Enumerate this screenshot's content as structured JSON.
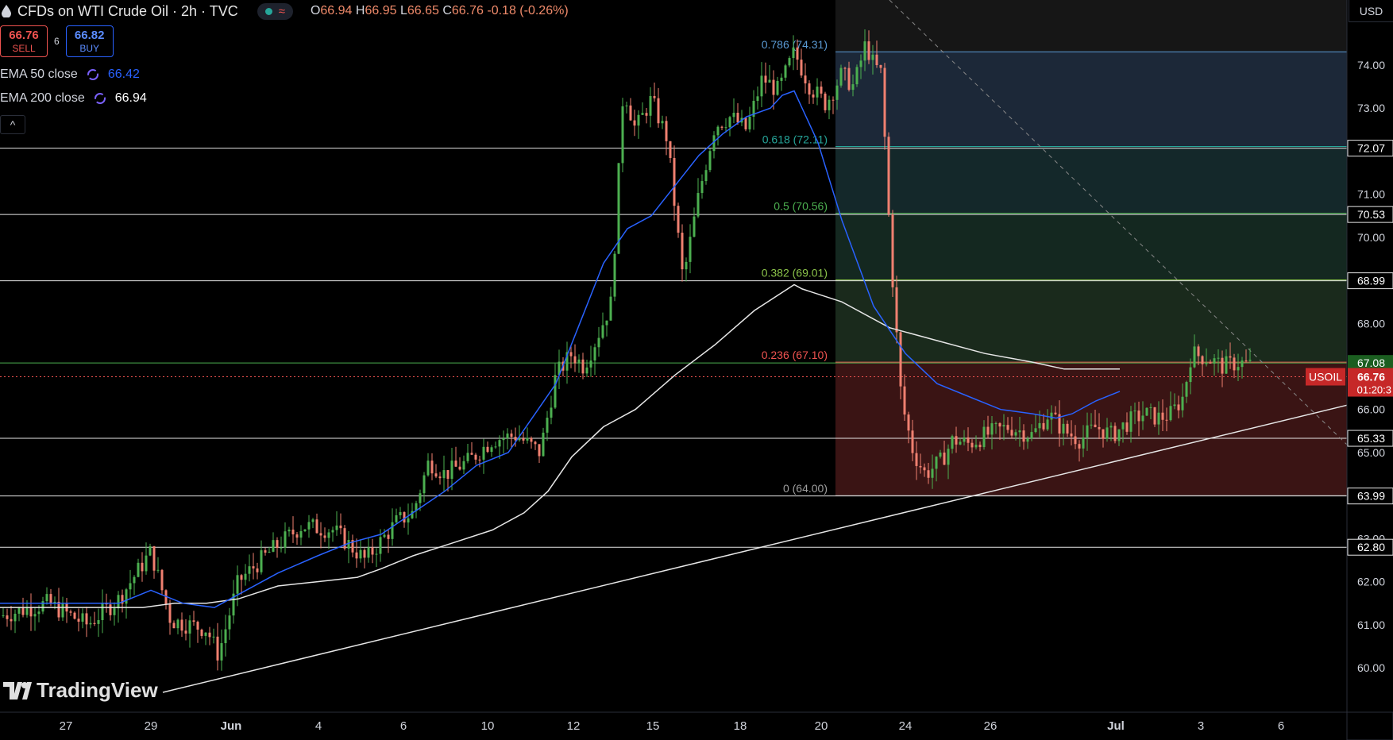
{
  "header": {
    "title": "CFDs on WTI Crude Oil · 2h · TVC",
    "market_status_icon": "green-dot",
    "indicator_icon": "wave-icon",
    "ohlc": [
      {
        "k": "O",
        "v": "66.94"
      },
      {
        "k": "H",
        "v": "66.95"
      },
      {
        "k": "L",
        "v": "66.65"
      },
      {
        "k": "C",
        "v": "66.76"
      },
      {
        "k": "",
        "v": "-0.18 (-0.26%)"
      }
    ]
  },
  "trade": {
    "sell_price": "66.76",
    "sell_label": "SELL",
    "spread": "6",
    "buy_price": "66.82",
    "buy_label": "BUY"
  },
  "indicators": [
    {
      "label": "EMA 50 close",
      "value": "66.42",
      "color": "#2962ff"
    },
    {
      "label": "EMA 200 close",
      "value": "66.94",
      "color": "#e6e6e6"
    }
  ],
  "collapse_label": "^",
  "currency": "USD",
  "logo_text": "TradingView",
  "colors": {
    "up": "#26a69a",
    "down": "#ef5350",
    "candle_up": "#4caf50",
    "candle_down": "#f08070",
    "ema50": "#2962ff",
    "ema200": "#e6e6e6",
    "fib_zone_top": "#1c2838",
    "fib_zone_mid": "#142820",
    "fib_zone_bottom": "#3a1414"
  },
  "chart_data": {
    "type": "candlestick",
    "symbol": "USOIL",
    "last_price": "66.76",
    "countdown": "01:20:3",
    "y_axis": {
      "range": [
        59.4,
        75.8
      ],
      "ticks": [
        "60.00",
        "61.00",
        "62.00",
        "63.00",
        "65.00",
        "66.00",
        "68.00",
        "70.00",
        "71.00",
        "73.00",
        "74.00"
      ]
    },
    "x_axis": {
      "labels": [
        "27",
        "29",
        "Jun",
        "4",
        "6",
        "10",
        "12",
        "15",
        "18",
        "20",
        "24",
        "26",
        "Jul",
        "3",
        "6"
      ],
      "bold": [
        "Jun",
        "Jul"
      ]
    },
    "horizontal_levels": [
      {
        "price": 72.07,
        "label": "72.07"
      },
      {
        "price": 70.53,
        "label": "70.53"
      },
      {
        "price": 68.99,
        "label": "68.99"
      },
      {
        "price": 67.08,
        "label": "67.08",
        "highlight": "green"
      },
      {
        "price": 65.33,
        "label": "65.33"
      },
      {
        "price": 63.99,
        "label": "63.99"
      },
      {
        "price": 62.8,
        "label": "62.80"
      }
    ],
    "fibonacci": [
      {
        "ratio": "0.786",
        "price": 74.31,
        "label": "0.786 (74.31)",
        "color": "#5b9bd5"
      },
      {
        "ratio": "0.618",
        "price": 72.11,
        "label": "0.618 (72.11)",
        "color": "#26a69a"
      },
      {
        "ratio": "0.5",
        "price": 70.56,
        "label": "0.5 (70.56)",
        "color": "#4caf50"
      },
      {
        "ratio": "0.382",
        "price": 69.01,
        "label": "0.382 (69.01)",
        "color": "#8bc34a"
      },
      {
        "ratio": "0.236",
        "price": 67.1,
        "label": "0.236 (67.10)",
        "color": "#ef5350"
      },
      {
        "ratio": "0",
        "price": 64.0,
        "label": "0 (64.00)",
        "color": "#9e9e9e"
      }
    ],
    "trendline": {
      "from": [
        "May 29",
        59.8
      ],
      "to": [
        "Jul 6",
        66.0
      ]
    },
    "ema50_path": [
      [
        0,
        61.5
      ],
      [
        60,
        61.5
      ],
      [
        110,
        61.5
      ],
      [
        150,
        61.5
      ],
      [
        190,
        61.8
      ],
      [
        230,
        61.5
      ],
      [
        270,
        61.4
      ],
      [
        300,
        61.7
      ],
      [
        350,
        62.2
      ],
      [
        400,
        62.6
      ],
      [
        440,
        62.9
      ],
      [
        480,
        63.1
      ],
      [
        520,
        63.6
      ],
      [
        560,
        64.1
      ],
      [
        600,
        64.7
      ],
      [
        640,
        65.0
      ],
      [
        670,
        65.8
      ],
      [
        700,
        66.6
      ],
      [
        730,
        68.0
      ],
      [
        760,
        69.4
      ],
      [
        790,
        70.2
      ],
      [
        820,
        70.5
      ],
      [
        850,
        71.2
      ],
      [
        880,
        71.9
      ],
      [
        910,
        72.4
      ],
      [
        940,
        72.8
      ],
      [
        970,
        73.0
      ],
      [
        985,
        73.3
      ],
      [
        1000,
        73.4
      ],
      [
        1030,
        72.2
      ],
      [
        1060,
        70.4
      ],
      [
        1100,
        68.4
      ],
      [
        1140,
        67.3
      ],
      [
        1180,
        66.6
      ],
      [
        1220,
        66.3
      ],
      [
        1260,
        66.0
      ],
      [
        1300,
        65.9
      ],
      [
        1330,
        65.8
      ],
      [
        1350,
        65.9
      ],
      [
        1380,
        66.2
      ],
      [
        1410,
        66.42
      ]
    ],
    "ema200_path": [
      [
        0,
        61.4
      ],
      [
        100,
        61.4
      ],
      [
        180,
        61.4
      ],
      [
        220,
        61.5
      ],
      [
        260,
        61.5
      ],
      [
        300,
        61.6
      ],
      [
        350,
        61.9
      ],
      [
        400,
        62.0
      ],
      [
        450,
        62.1
      ],
      [
        480,
        62.3
      ],
      [
        520,
        62.6
      ],
      [
        570,
        62.9
      ],
      [
        620,
        63.2
      ],
      [
        660,
        63.6
      ],
      [
        690,
        64.1
      ],
      [
        720,
        64.9
      ],
      [
        760,
        65.6
      ],
      [
        800,
        66.0
      ],
      [
        850,
        66.8
      ],
      [
        900,
        67.5
      ],
      [
        950,
        68.3
      ],
      [
        1000,
        68.9
      ],
      [
        1010,
        68.8
      ],
      [
        1060,
        68.5
      ],
      [
        1120,
        67.9
      ],
      [
        1180,
        67.6
      ],
      [
        1240,
        67.3
      ],
      [
        1300,
        67.1
      ],
      [
        1340,
        66.94
      ],
      [
        1410,
        66.94
      ]
    ],
    "candles_summary": {
      "start": 60.8,
      "peak": 75.5,
      "peak_date": "Jun 23",
      "low_after_drop": 64.0,
      "last": 66.76
    }
  }
}
